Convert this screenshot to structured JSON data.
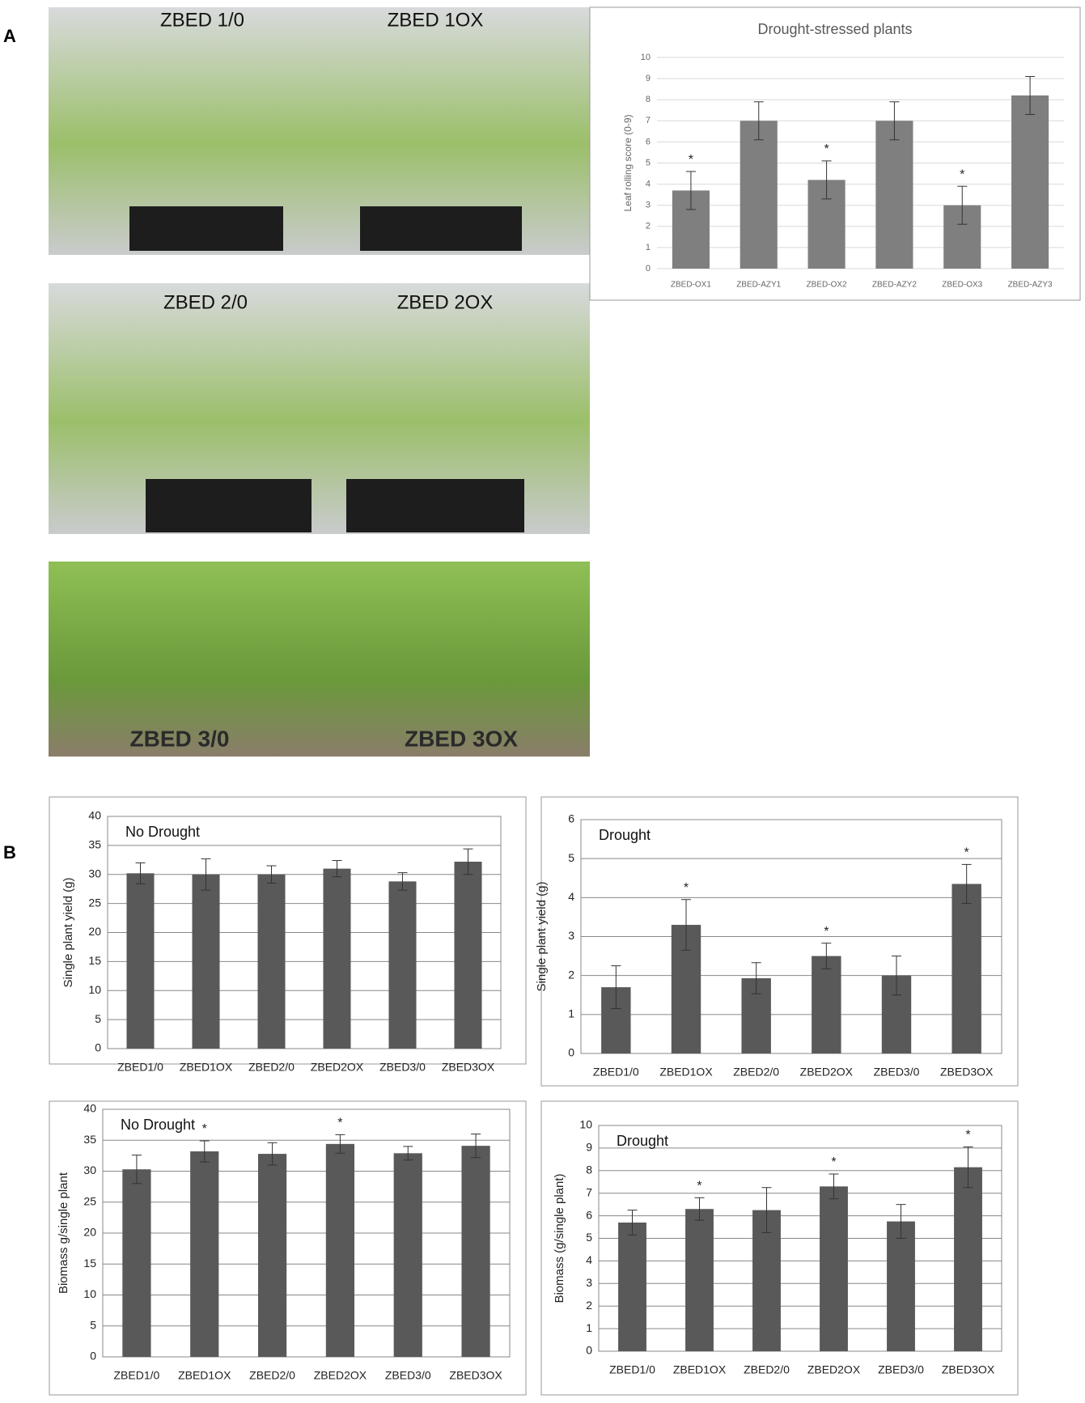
{
  "panel_labels": [
    "A",
    "B"
  ],
  "photos": [
    {
      "labels": [
        "ZBED 1/0",
        "ZBED 1OX"
      ]
    },
    {
      "labels": [
        "ZBED 2/0",
        "ZBED 2OX"
      ]
    },
    {
      "labels": [
        "ZBED 3/0",
        "ZBED 3OX"
      ]
    }
  ],
  "chart_data": [
    {
      "type": "bar",
      "title": "Drought-stressed plants",
      "y_label": "Leaf rolling score (0-9)",
      "categories": [
        "ZBED-OX1",
        "ZBED-AZY1",
        "ZBED-OX2",
        "ZBED-AZY2",
        "ZBED-OX3",
        "ZBED-AZY3"
      ],
      "values": [
        3.7,
        7.0,
        4.2,
        7.0,
        3.0,
        8.2
      ],
      "errors": [
        0.9,
        0.9,
        0.9,
        0.9,
        0.9,
        0.9
      ],
      "significance_labels": [
        "*",
        null,
        "*",
        null,
        "*",
        null
      ],
      "color": "#7f7f7f",
      "ylim": [
        0,
        10
      ],
      "yticks": [
        0,
        1,
        2,
        3,
        4,
        5,
        6,
        7,
        8,
        9,
        10
      ],
      "grid": true
    },
    {
      "type": "bar",
      "annotation": "No Drought",
      "y_label": "Single plant yield (g)",
      "categories": [
        "ZBED1/0",
        "ZBED1OX",
        "ZBED2/0",
        "ZBED2OX",
        "ZBED3/0",
        "ZBED3OX"
      ],
      "values": [
        30.2,
        30.0,
        30.0,
        31.0,
        28.8,
        32.2
      ],
      "errors": [
        1.8,
        2.7,
        1.5,
        1.4,
        1.5,
        2.2
      ],
      "color": "#595959",
      "ylim": [
        0,
        40
      ],
      "yticks": [
        0,
        5,
        10,
        15,
        20,
        25,
        30,
        35,
        40
      ],
      "grid": true
    },
    {
      "type": "bar",
      "annotation": "Drought",
      "y_label": "Single plant yield (g)",
      "categories": [
        "ZBED1/0",
        "ZBED1OX",
        "ZBED2/0",
        "ZBED2OX",
        "ZBED3/0",
        "ZBED3OX"
      ],
      "values": [
        1.7,
        3.3,
        1.93,
        2.5,
        2.0,
        4.35
      ],
      "errors": [
        0.55,
        0.65,
        0.4,
        0.33,
        0.5,
        0.5
      ],
      "significance_labels": [
        null,
        "*",
        null,
        "*",
        null,
        "*"
      ],
      "color": "#595959",
      "ylim": [
        0,
        6
      ],
      "yticks": [
        0,
        1,
        2,
        3,
        4,
        5,
        6
      ],
      "grid": true
    },
    {
      "type": "bar",
      "annotation": "No Drought",
      "y_label": "Biomass g/single plant",
      "categories": [
        "ZBED1/0",
        "ZBED1OX",
        "ZBED2/0",
        "ZBED2OX",
        "ZBED3/0",
        "ZBED3OX"
      ],
      "values": [
        30.3,
        33.2,
        32.8,
        34.4,
        32.9,
        34.1
      ],
      "errors": [
        2.3,
        1.7,
        1.8,
        1.5,
        1.1,
        1.9
      ],
      "significance_labels": [
        null,
        "*",
        null,
        "*",
        null,
        null
      ],
      "color": "#595959",
      "ylim": [
        0,
        40
      ],
      "yticks": [
        0,
        5,
        10,
        15,
        20,
        25,
        30,
        35,
        40
      ],
      "grid": true
    },
    {
      "type": "bar",
      "annotation": "Drought",
      "y_label": "Biomass (g/single plant)",
      "categories": [
        "ZBED1/0",
        "ZBED1OX",
        "ZBED2/0",
        "ZBED2OX",
        "ZBED3/0",
        "ZBED3OX"
      ],
      "values": [
        5.7,
        6.3,
        6.25,
        7.3,
        5.75,
        8.15
      ],
      "errors": [
        0.55,
        0.5,
        1.0,
        0.55,
        0.75,
        0.9
      ],
      "significance_labels": [
        null,
        "*",
        null,
        "*",
        null,
        "*"
      ],
      "color": "#595959",
      "ylim": [
        0,
        10
      ],
      "yticks": [
        0,
        1,
        2,
        3,
        4,
        5,
        6,
        7,
        8,
        9,
        10
      ],
      "grid": true
    }
  ]
}
